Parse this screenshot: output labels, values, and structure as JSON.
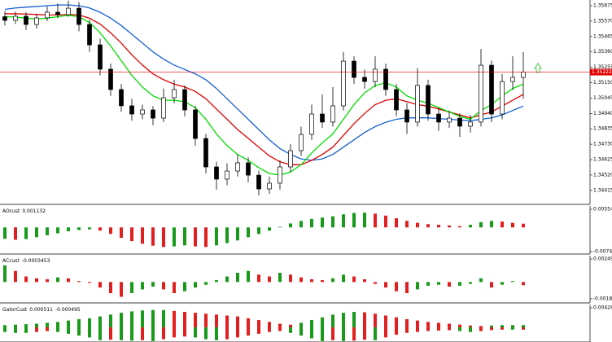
{
  "chart_data": [
    {
      "type": "candlestick",
      "open": [
        1.356,
        1.35575,
        1.35603,
        1.35547,
        1.35592,
        1.35631,
        1.35614,
        1.35658,
        1.35547,
        1.35408,
        1.35242,
        1.35103,
        1.34992,
        1.34936,
        1.34964,
        1.34908,
        1.35047,
        1.35103,
        1.34964,
        1.34769,
        1.34575,
        1.34492,
        1.34547,
        1.34603,
        1.34519,
        1.34425,
        1.34464,
        1.34575,
        1.34686,
        1.34797,
        1.34936,
        1.34881,
        1.34992,
        1.35297,
        1.35186,
        1.35158,
        1.35242,
        1.35103,
        1.34964,
        1.34881,
        1.35131,
        1.34936,
        1.34881,
        1.34908,
        1.34853,
        1.34881,
        1.35269,
        1.34936,
        1.35158,
        1.35186
      ],
      "high": [
        1.3564,
        1.35635,
        1.3563,
        1.3562,
        1.3567,
        1.3569,
        1.3571,
        1.357,
        1.3558,
        1.3545,
        1.3528,
        1.3514,
        1.3504,
        1.35,
        1.3499,
        1.3511,
        1.3517,
        1.3513,
        1.3499,
        1.348,
        1.3461,
        1.346,
        1.3466,
        1.3464,
        1.3455,
        1.3451,
        1.3462,
        1.3473,
        1.3485,
        1.35,
        1.3507,
        1.3512,
        1.3536,
        1.3533,
        1.3524,
        1.3533,
        1.3528,
        1.3514,
        1.3501,
        1.3525,
        1.3517,
        1.3498,
        1.3496,
        1.3494,
        1.3493,
        1.3538,
        1.353,
        1.3521,
        1.3533,
        1.3536
      ],
      "low": [
        1.3554,
        1.3555,
        1.3551,
        1.3552,
        1.3557,
        1.3559,
        1.356,
        1.355,
        1.3536,
        1.352,
        1.3506,
        1.3495,
        1.3489,
        1.349,
        1.3486,
        1.3488,
        1.3501,
        1.3492,
        1.3472,
        1.3453,
        1.3442,
        1.3445,
        1.3451,
        1.3447,
        1.3438,
        1.3439,
        1.3442,
        1.3454,
        1.3465,
        1.3476,
        1.3484,
        1.3485,
        1.3496,
        1.3514,
        1.3511,
        1.3512,
        1.3506,
        1.3492,
        1.348,
        1.3485,
        1.3489,
        1.3482,
        1.3484,
        1.3478,
        1.3481,
        1.3485,
        1.3488,
        1.349,
        1.351,
        1.3504
      ],
      "close": [
        1.35575,
        1.35603,
        1.35547,
        1.35592,
        1.35631,
        1.35614,
        1.35658,
        1.35547,
        1.35408,
        1.35242,
        1.35103,
        1.34992,
        1.34936,
        1.34964,
        1.34908,
        1.35047,
        1.35103,
        1.34964,
        1.34769,
        1.34575,
        1.34492,
        1.34547,
        1.34603,
        1.34519,
        1.34425,
        1.34464,
        1.34575,
        1.34686,
        1.34797,
        1.34936,
        1.34881,
        1.34992,
        1.35297,
        1.35186,
        1.35158,
        1.35242,
        1.35103,
        1.34964,
        1.34881,
        1.35131,
        1.34936,
        1.34881,
        1.34908,
        1.34853,
        1.34881,
        1.35269,
        1.34936,
        1.35158,
        1.35186,
        1.35222
      ],
      "up_color": "#ffffff",
      "down_color": "#000000",
      "series": [
        {
          "color": "#1560d0",
          "values": [
            1.3565,
            1.3566,
            1.35665,
            1.3567,
            1.35675,
            1.3568,
            1.3568,
            1.35675,
            1.3566,
            1.3563,
            1.3559,
            1.3554,
            1.3548,
            1.3542,
            1.3536,
            1.3531,
            1.3527,
            1.3524,
            1.3521,
            1.3517,
            1.3511,
            1.3504,
            1.3497,
            1.349,
            1.3483,
            1.3476,
            1.347,
            1.3466,
            1.3463,
            1.3462,
            1.3463,
            1.3466,
            1.3471,
            1.3476,
            1.3481,
            1.3485,
            1.3488,
            1.349,
            1.3491,
            1.3491,
            1.3491,
            1.34905,
            1.349,
            1.34895,
            1.3489,
            1.349,
            1.3491,
            1.3493,
            1.3496,
            1.3499
          ]
        },
        {
          "color": "#e00000",
          "values": [
            1.3562,
            1.3562,
            1.35618,
            1.35615,
            1.35612,
            1.35612,
            1.35615,
            1.35612,
            1.3559,
            1.3555,
            1.3549,
            1.3542,
            1.3534,
            1.3527,
            1.3521,
            1.3517,
            1.3514,
            1.3512,
            1.3509,
            1.3504,
            1.3497,
            1.349,
            1.3483,
            1.3477,
            1.3471,
            1.3465,
            1.3461,
            1.3459,
            1.3459,
            1.3462,
            1.3466,
            1.3471,
            1.3479,
            1.3487,
            1.3494,
            1.35,
            1.3503,
            1.3504,
            1.3502,
            1.35,
            1.3499,
            1.3497,
            1.3495,
            1.3493,
            1.3491,
            1.3493,
            1.3495,
            1.3499,
            1.3503,
            1.3507
          ]
        },
        {
          "color": "#00dd00",
          "values": [
            1.356,
            1.35598,
            1.3559,
            1.35585,
            1.3559,
            1.356,
            1.3561,
            1.356,
            1.3556,
            1.3549,
            1.354,
            1.353,
            1.352,
            1.3512,
            1.3506,
            1.3503,
            1.3503,
            1.3502,
            1.3498,
            1.349,
            1.348,
            1.3472,
            1.3466,
            1.3462,
            1.3457,
            1.3453,
            1.3452,
            1.3454,
            1.3459,
            1.3467,
            1.3474,
            1.348,
            1.349,
            1.35,
            1.3508,
            1.3513,
            1.3515,
            1.3512,
            1.3506,
            1.3503,
            1.3501,
            1.3498,
            1.3495,
            1.3492,
            1.349,
            1.3496,
            1.35,
            1.3506,
            1.3511,
            1.3514
          ]
        }
      ],
      "current_price": 1.35222,
      "current_price_color": "#e00000",
      "ylim": [
        1.34325,
        1.35714
      ],
      "yticks": [
        {
          "value": 1.35675,
          "label": "1.35675"
        },
        {
          "value": 1.3557,
          "label": "1.35570"
        },
        {
          "value": 1.35465,
          "label": "1.35465"
        },
        {
          "value": 1.3536,
          "label": "1.35360"
        },
        {
          "value": 1.35255,
          "label": "1.35255"
        },
        {
          "value": 1.3515,
          "label": "1.35150"
        },
        {
          "value": 1.35045,
          "label": "1.35045"
        },
        {
          "value": 1.3494,
          "label": "1.34940"
        },
        {
          "value": 1.34835,
          "label": "1.34835"
        },
        {
          "value": 1.3473,
          "label": "1.34730"
        },
        {
          "value": 1.34625,
          "label": "1.34625"
        },
        {
          "value": 1.3452,
          "label": "1.34520"
        },
        {
          "value": 1.34415,
          "label": "1.34415"
        }
      ]
    },
    {
      "type": "oscillator",
      "label": "AOcust",
      "value": 0.001132,
      "values": [
        -0.0035,
        -0.0038,
        -0.0036,
        -0.003,
        -0.0024,
        -0.0018,
        -0.0012,
        -0.0008,
        -0.0006,
        -0.001,
        -0.002,
        -0.0032,
        -0.0042,
        -0.005,
        -0.0056,
        -0.006,
        -0.0058,
        -0.0055,
        -0.0058,
        -0.006,
        -0.0055,
        -0.0048,
        -0.004,
        -0.003,
        -0.002,
        -0.001,
        0.0002,
        0.0012,
        0.002,
        0.0026,
        0.003,
        0.0034,
        0.004,
        0.0044,
        0.0045,
        0.0042,
        0.0036,
        0.0028,
        0.002,
        0.0014,
        0.001,
        0.0008,
        0.0006,
        0.0004,
        0.0008,
        0.0016,
        0.002,
        0.0018,
        0.0014,
        0.001132
      ],
      "up_color": "#1a9a1a",
      "down_color": "#e02020",
      "ylim": [
        -0.00741,
        0.005544
      ],
      "yticks": [
        0.005544,
        {
          "value": -0.00741,
          "label": "-0.007410"
        }
      ]
    },
    {
      "type": "oscillator",
      "label": "ACcust",
      "value": -0.0003453,
      "values": [
        0.0018,
        0.0012,
        0.0006,
        0.0004,
        0.0003,
        0.0005,
        0.0004,
        0.0001,
        -0.0001,
        -0.0006,
        -0.0012,
        -0.0016,
        -0.0012,
        -0.0008,
        -0.0005,
        -0.0008,
        -0.0012,
        -0.001,
        -0.0006,
        -0.0003,
        0.0002,
        0.0006,
        0.001,
        0.0012,
        0.0008,
        0.0006,
        0.001,
        0.0008,
        0.0005,
        0.0003,
        0.0002,
        0.0004,
        0.0008,
        0.0006,
        0.0003,
        -0.0002,
        -0.0006,
        -0.001,
        -0.0012,
        -0.0008,
        -0.0004,
        -0.0003,
        -0.0005,
        -0.0004,
        -0.0002,
        0.0004,
        -0.0006,
        -0.0003,
        0.0001,
        -0.0003453
      ],
      "up_color": "#1a9a1a",
      "down_color": "#e02020",
      "ylim": [
        -0.0018191,
        0.0024955
      ],
      "yticks": [
        0.0024955,
        -0.0018191
      ]
    },
    {
      "type": "gator",
      "label": "GatorCust",
      "upper_value": 0.000511,
      "lower_value": -0.000495,
      "upper": [
        0.0005,
        0.0006,
        0.0007,
        0.0008,
        0.001,
        0.0012,
        0.0015,
        0.0018,
        0.002,
        0.0024,
        0.0028,
        0.0032,
        0.0035,
        0.0037,
        0.0038,
        0.0038,
        0.0036,
        0.0034,
        0.0032,
        0.003,
        0.0028,
        0.0026,
        0.0024,
        0.002,
        0.0016,
        0.0012,
        0.0008,
        0.0006,
        0.001,
        0.0016,
        0.0022,
        0.0028,
        0.0032,
        0.0034,
        0.0033,
        0.003,
        0.0026,
        0.0022,
        0.0018,
        0.0015,
        0.0012,
        0.001,
        0.0008,
        0.0006,
        0.0004,
        0.0003,
        0.0004,
        0.0005,
        0.0005,
        0.000511
      ],
      "lower": [
        -0.001,
        -0.0012,
        -0.0012,
        -0.001,
        -0.0008,
        -0.001,
        -0.0014,
        -0.0018,
        -0.0022,
        -0.0028,
        -0.0027,
        -0.0028,
        -0.0029,
        -0.0028,
        -0.003,
        -0.0026,
        -0.0022,
        -0.002,
        -0.0022,
        -0.0026,
        -0.0028,
        -0.0026,
        -0.0022,
        -0.0018,
        -0.0014,
        -0.001,
        -0.0008,
        -0.0012,
        -0.0018,
        -0.0024,
        -0.003,
        -0.0028,
        -0.003,
        -0.0029,
        -0.0027,
        -0.0028,
        -0.0022,
        -0.0016,
        -0.0012,
        -0.001,
        -0.0008,
        -0.0007,
        -0.0006,
        -0.0008,
        -0.001,
        -0.0008,
        -0.0006,
        -0.0005,
        -0.0005,
        -0.000495
      ],
      "up_color": "#1a9a1a",
      "down_color": "#e02020",
      "ylim": [
        -0.0032,
        0.004286
      ],
      "yticks": [
        0.004286
      ]
    }
  ]
}
